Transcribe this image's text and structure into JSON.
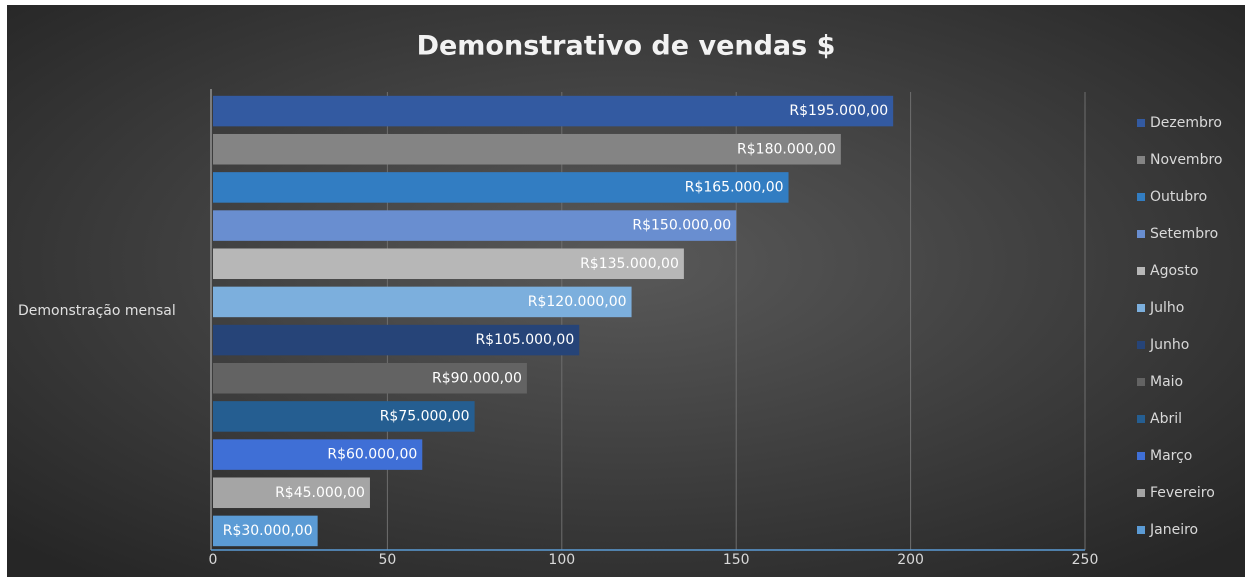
{
  "chart_data": {
    "type": "hbar",
    "title": "Demonstrativo de vendas $",
    "categories": [
      "Demonstração mensal"
    ],
    "series": [
      {
        "name": "Janeiro",
        "color": "#5b9bd5",
        "values": [
          30
        ],
        "value_labels": [
          "R$30.000,00"
        ]
      },
      {
        "name": "Fevereiro",
        "color": "#a5a5a5",
        "values": [
          45
        ],
        "value_labels": [
          "R$45.000,00"
        ]
      },
      {
        "name": "Março",
        "color": "#3f6fd6",
        "values": [
          60
        ],
        "value_labels": [
          "R$60.000,00"
        ]
      },
      {
        "name": "Abril",
        "color": "#255e91",
        "values": [
          75
        ],
        "value_labels": [
          "R$75.000,00"
        ]
      },
      {
        "name": "Maio",
        "color": "#636363",
        "values": [
          90
        ],
        "value_labels": [
          "R$90.000,00"
        ]
      },
      {
        "name": "Junho",
        "color": "#264478",
        "values": [
          105
        ],
        "value_labels": [
          "R$105.000,00"
        ]
      },
      {
        "name": "Julho",
        "color": "#7cafdd",
        "values": [
          120
        ],
        "value_labels": [
          "R$120.000,00"
        ]
      },
      {
        "name": "Agosto",
        "color": "#b7b7b7",
        "values": [
          135
        ],
        "value_labels": [
          "R$135.000,00"
        ]
      },
      {
        "name": "Setembro",
        "color": "#698ed0",
        "values": [
          150
        ],
        "value_labels": [
          "R$150.000,00"
        ]
      },
      {
        "name": "Outubro",
        "color": "#327dc2",
        "values": [
          165
        ],
        "value_labels": [
          "R$165.000,00"
        ]
      },
      {
        "name": "Novembro",
        "color": "#848484",
        "values": [
          180
        ],
        "value_labels": [
          "R$180.000,00"
        ]
      },
      {
        "name": "Dezembro",
        "color": "#335aa1",
        "values": [
          195
        ],
        "value_labels": [
          "R$195.000,00"
        ]
      }
    ],
    "xlim": [
      0,
      250
    ],
    "xticks": [
      0,
      50,
      100,
      150,
      200,
      250
    ],
    "grid": true,
    "legend": "right"
  }
}
